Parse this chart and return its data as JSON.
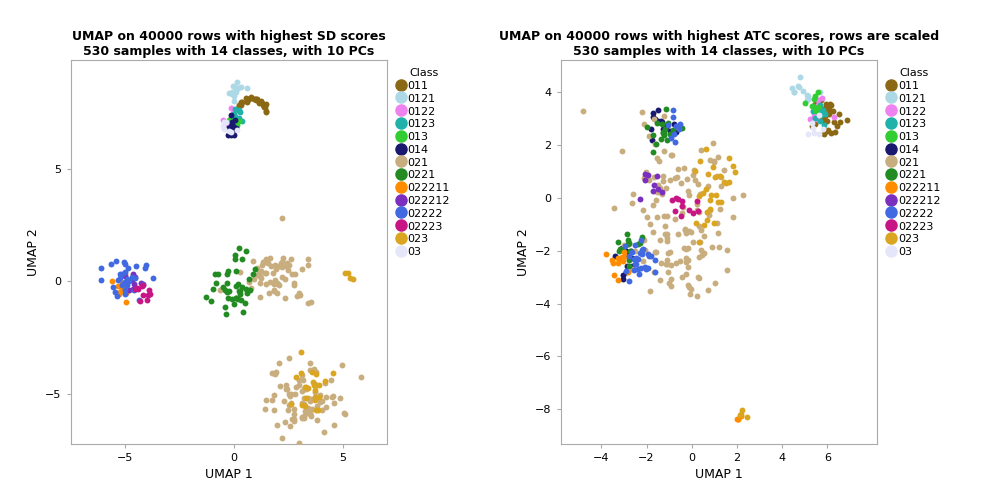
{
  "title1": "UMAP on 40000 rows with highest SD scores\n530 samples with 14 classes, with 10 PCs",
  "title2": "UMAP on 40000 rows with highest ATC scores, rows are scaled\n530 samples with 14 classes, with 10 PCs",
  "xlabel": "UMAP 1",
  "ylabel": "UMAP 2",
  "classes": [
    "011",
    "0121",
    "0122",
    "0123",
    "013",
    "014",
    "021",
    "0221",
    "022211",
    "022212",
    "02222",
    "02223",
    "023",
    "03"
  ],
  "colors": {
    "011": "#8B6914",
    "0121": "#ADD8E6",
    "0122": "#EE82EE",
    "0123": "#20B2AA",
    "013": "#32CD32",
    "014": "#191970",
    "021": "#C8AD7F",
    "0221": "#228B22",
    "022211": "#FF8C00",
    "022212": "#7B2FBE",
    "02222": "#4169E1",
    "02223": "#C71585",
    "023": "#DAA520",
    "03": "#E6E6FA"
  },
  "xlim1": [
    -7.5,
    7.0
  ],
  "ylim1": [
    -7.2,
    9.8
  ],
  "xlim2": [
    -5.8,
    8.2
  ],
  "ylim2": [
    -9.3,
    5.2
  ],
  "xticks1": [
    -5,
    0,
    5
  ],
  "yticks1": [
    -5,
    0,
    5
  ],
  "xticks2": [
    -4,
    -2,
    0,
    2,
    4,
    6
  ],
  "yticks2": [
    -8,
    -6,
    -4,
    -2,
    0,
    2,
    4
  ],
  "point_size": 18,
  "legend_dot_size": 8,
  "title_fontsize": 9,
  "axis_fontsize": 9,
  "tick_fontsize": 8,
  "legend_fontsize": 8
}
